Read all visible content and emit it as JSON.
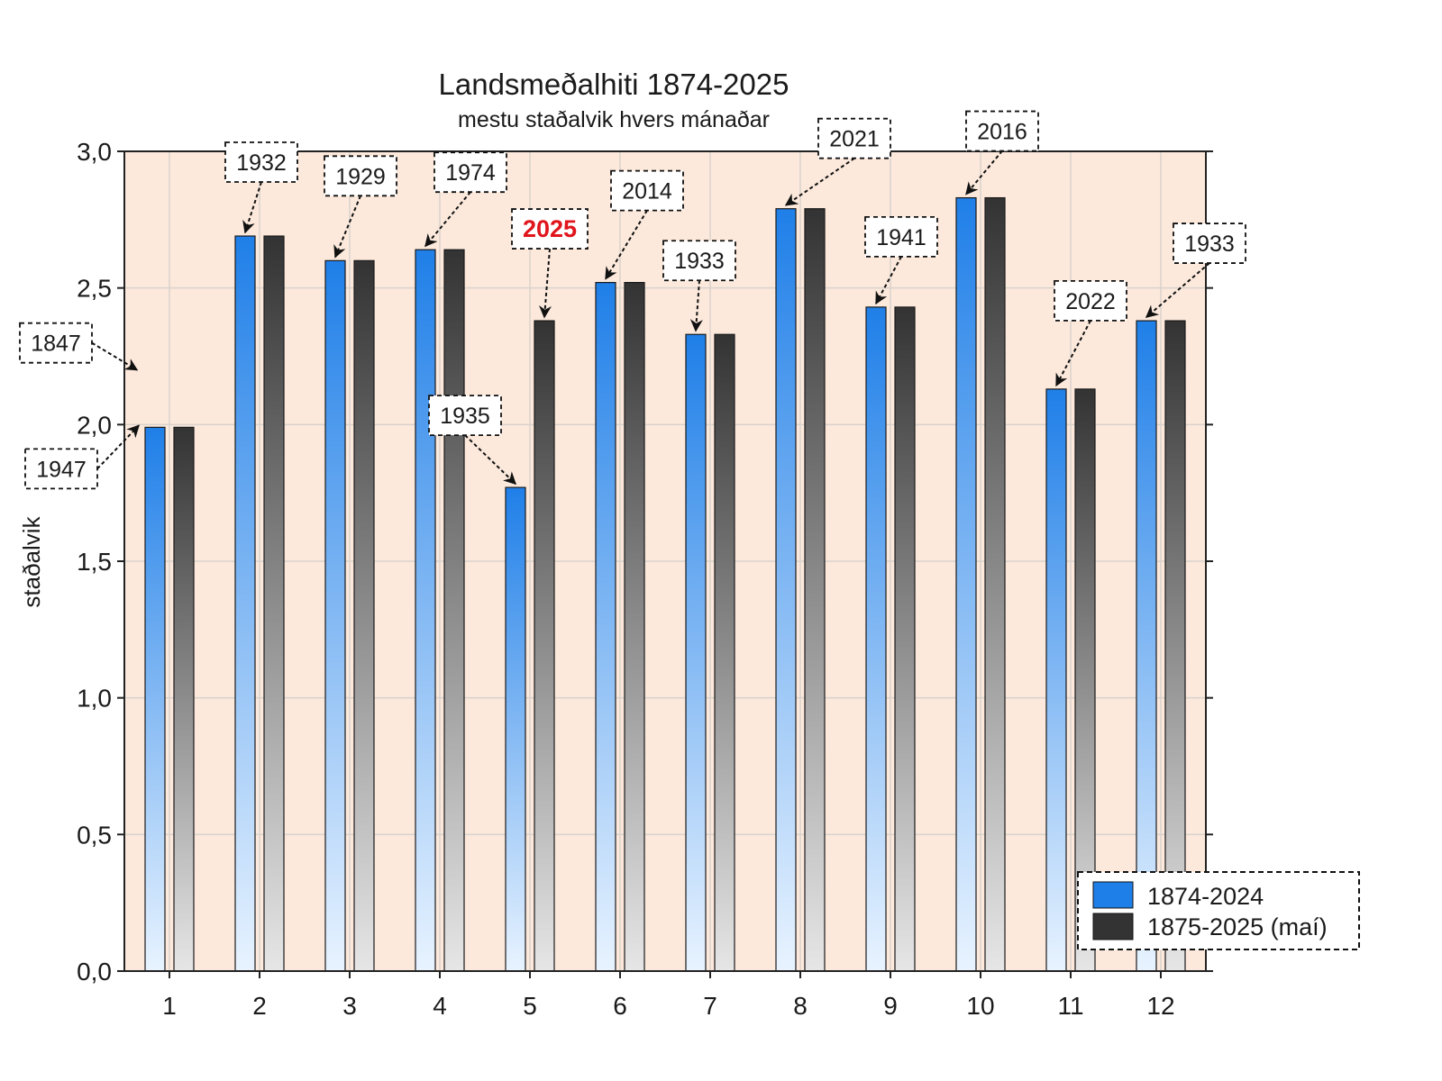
{
  "chart_data": {
    "type": "bar",
    "title": "Landsmeðalhiti 1874-2025",
    "subtitle": "mestu staðalvik hvers mánaðar",
    "ylabel": "staðalvik",
    "xlabel": "",
    "ylim": [
      0,
      3
    ],
    "yticks": [
      "0,0",
      "0,5",
      "1,0",
      "1,5",
      "2,0",
      "2,5",
      "3,0"
    ],
    "grid": true,
    "legend_position": "bottom-right",
    "plot_background": "#fce9dc",
    "categories": [
      "1",
      "2",
      "3",
      "4",
      "5",
      "6",
      "7",
      "8",
      "9",
      "10",
      "11",
      "12"
    ],
    "series": [
      {
        "name": "1874-2024",
        "color": "#1f7fe8",
        "values": [
          1.99,
          2.69,
          2.6,
          2.64,
          1.77,
          2.52,
          2.33,
          2.79,
          2.43,
          2.83,
          2.13,
          2.38
        ]
      },
      {
        "name": "1875-2025 (maí)",
        "color": "#333333",
        "values": [
          1.99,
          2.69,
          2.6,
          2.64,
          2.38,
          2.52,
          2.33,
          2.79,
          2.43,
          2.83,
          2.13,
          2.38
        ]
      }
    ],
    "annotations": [
      {
        "text": "1947",
        "category": "1",
        "series": 0,
        "highlight": false
      },
      {
        "text": "1847",
        "category": "1",
        "y": 2.2,
        "highlight": false
      },
      {
        "text": "1932",
        "category": "2",
        "series": 0,
        "highlight": false
      },
      {
        "text": "1929",
        "category": "3",
        "series": 0,
        "highlight": false
      },
      {
        "text": "1974",
        "category": "4",
        "series": 0,
        "highlight": false
      },
      {
        "text": "1935",
        "category": "5",
        "series": 0,
        "highlight": false
      },
      {
        "text": "2025",
        "category": "5",
        "series": 1,
        "highlight": true
      },
      {
        "text": "2014",
        "category": "6",
        "series": 0,
        "highlight": false
      },
      {
        "text": "1933",
        "category": "7",
        "series": 0,
        "highlight": false
      },
      {
        "text": "2021",
        "category": "8",
        "series": 0,
        "highlight": false
      },
      {
        "text": "1941",
        "category": "9",
        "series": 0,
        "highlight": false
      },
      {
        "text": "2016",
        "category": "10",
        "series": 0,
        "highlight": false
      },
      {
        "text": "2022",
        "category": "11",
        "series": 0,
        "highlight": false
      },
      {
        "text": "1933",
        "category": "12",
        "series": 0,
        "highlight": false
      }
    ]
  }
}
